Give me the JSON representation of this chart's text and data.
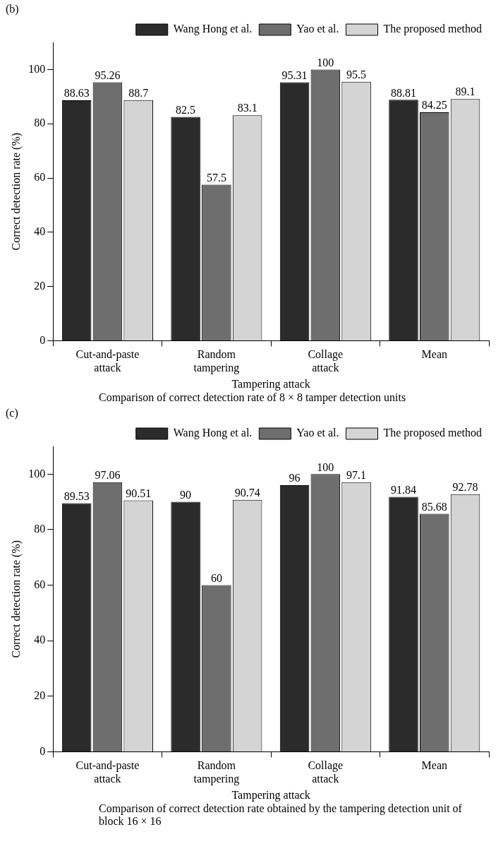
{
  "chart_data": [
    {
      "type": "bar",
      "title": "(b)",
      "xlabel": "Tampering attack",
      "ylabel": "Correct detection rate (%)",
      "annotations": [
        "Comparison of correct detection rate of 8 × 8 tamper detection units"
      ],
      "categories": [
        "Cut-and-paste attack",
        "Random tampering",
        "Collage attack",
        "Mean"
      ],
      "series": [
        {
          "name": "Wang Hong et al.",
          "color": "#2b2b2b",
          "values": [
            88.63,
            82.5,
            95.31,
            88.81
          ]
        },
        {
          "name": "Yao et al.",
          "color": "#6e6e6e",
          "values": [
            95.26,
            57.5,
            100,
            84.25
          ]
        },
        {
          "name": "The proposed method",
          "color": "#d4d4d4",
          "values": [
            88.7,
            83.1,
            95.5,
            89.1
          ]
        }
      ],
      "ylim": [
        0,
        110
      ],
      "yticks": [
        0,
        20,
        40,
        60,
        80,
        100
      ],
      "grid": false,
      "legend": "top right",
      "data_labels": true
    },
    {
      "type": "bar",
      "title": "(c)",
      "xlabel": "Tampering attack",
      "ylabel": "Correct detection rate (%)",
      "annotations": [
        "Comparison of correct detection rate obtained by the tampering detection unit of block 16 × 16"
      ],
      "categories": [
        "Cut-and-paste attack",
        "Random tampering",
        "Collage attack",
        "Mean"
      ],
      "series": [
        {
          "name": "Wang Hong et al.",
          "color": "#2b2b2b",
          "values": [
            89.53,
            90,
            96,
            91.84
          ]
        },
        {
          "name": "Yao et al.",
          "color": "#6e6e6e",
          "values": [
            97.06,
            60,
            100,
            85.68
          ]
        },
        {
          "name": "The proposed method",
          "color": "#d4d4d4",
          "values": [
            90.51,
            90.74,
            97.1,
            92.78
          ]
        }
      ],
      "ylim": [
        0,
        110
      ],
      "yticks": [
        0,
        20,
        40,
        60,
        80,
        100
      ],
      "grid": false,
      "legend": "top right",
      "data_labels": true
    }
  ]
}
